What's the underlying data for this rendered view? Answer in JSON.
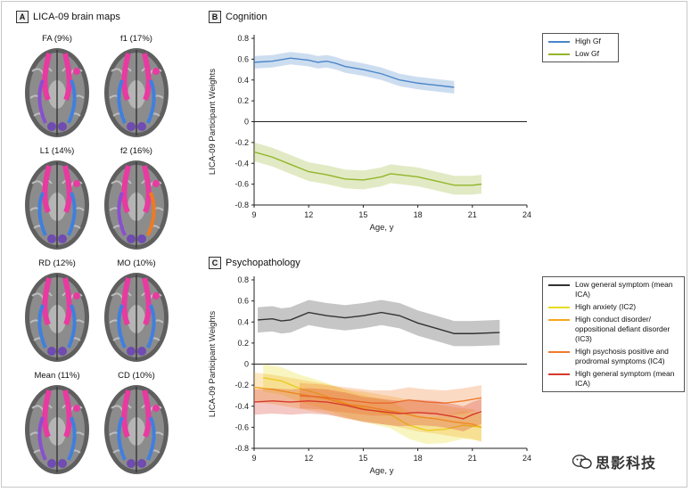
{
  "panels": {
    "a": {
      "badge": "A",
      "title": "LICA-09 brain maps",
      "maps": [
        {
          "label": "FA (9%)"
        },
        {
          "label": "f1 (17%)"
        },
        {
          "label": "L1 (14%)"
        },
        {
          "label": "f2 (16%)"
        },
        {
          "label": "RD (12%)"
        },
        {
          "label": "MO (10%)"
        },
        {
          "label": "Mean (11%)"
        },
        {
          "label": "CD (10%)"
        }
      ]
    },
    "b": {
      "badge": "B",
      "title": "Cognition"
    },
    "c": {
      "badge": "C",
      "title": "Psychopathology"
    }
  },
  "legend_b": [
    {
      "label": "High Gf",
      "color": "#4a86c8"
    },
    {
      "label": "Low Gf",
      "color": "#93b52a"
    }
  ],
  "legend_c": [
    {
      "label": "Low general symptom (mean ICA)",
      "color": "#333333"
    },
    {
      "label": "High anxiety (IC2)",
      "color": "#e6dc1e"
    },
    {
      "label": "High conduct disorder/ oppositional defiant disorder (IC3)",
      "color": "#f5a81c"
    },
    {
      "label": "High psychosis positive and prodromal symptoms (IC4)",
      "color": "#ef7a2c"
    },
    {
      "label": "High general symptom (mean ICA)",
      "color": "#d63a2c"
    }
  ],
  "watermark": {
    "text": "思影科技"
  },
  "chart_data": [
    {
      "type": "line",
      "title": "Cognition",
      "xlabel": "Age, y",
      "ylabel": "LICA-09 Participant Weights",
      "xlim": [
        9,
        24
      ],
      "ylim": [
        -0.8,
        0.8
      ],
      "xticks": [
        9,
        12,
        15,
        18,
        21,
        24
      ],
      "yticks": [
        -0.8,
        -0.6,
        -0.4,
        -0.2,
        0,
        0.2,
        0.4,
        0.6,
        0.8
      ],
      "series": [
        {
          "name": "High Gf",
          "color": "#4a86c8",
          "band": 0.06,
          "points": [
            [
              9,
              0.57
            ],
            [
              10,
              0.58
            ],
            [
              11,
              0.61
            ],
            [
              12,
              0.59
            ],
            [
              12.5,
              0.57
            ],
            [
              13,
              0.58
            ],
            [
              13.5,
              0.56
            ],
            [
              14,
              0.53
            ],
            [
              15,
              0.5
            ],
            [
              16,
              0.46
            ],
            [
              17,
              0.4
            ],
            [
              18,
              0.37
            ],
            [
              18.5,
              0.36
            ],
            [
              19,
              0.35
            ],
            [
              20,
              0.33
            ]
          ]
        },
        {
          "name": "Low Gf",
          "color": "#93b52a",
          "band": 0.09,
          "points": [
            [
              9,
              -0.29
            ],
            [
              10,
              -0.34
            ],
            [
              11,
              -0.41
            ],
            [
              12,
              -0.48
            ],
            [
              13,
              -0.51
            ],
            [
              14,
              -0.55
            ],
            [
              15,
              -0.56
            ],
            [
              16,
              -0.53
            ],
            [
              16.5,
              -0.5
            ],
            [
              17,
              -0.51
            ],
            [
              18,
              -0.53
            ],
            [
              19,
              -0.57
            ],
            [
              20,
              -0.61
            ],
            [
              21,
              -0.61
            ],
            [
              21.5,
              -0.6
            ]
          ]
        }
      ]
    },
    {
      "type": "line",
      "title": "Psychopathology",
      "xlabel": "Age, y",
      "ylabel": "LICA-09 Participant Weights",
      "xlim": [
        9,
        24
      ],
      "ylim": [
        -0.8,
        0.8
      ],
      "xticks": [
        9,
        12,
        15,
        18,
        21,
        24
      ],
      "yticks": [
        -0.8,
        -0.6,
        -0.4,
        -0.2,
        0,
        0.2,
        0.4,
        0.6,
        0.8
      ],
      "series": [
        {
          "name": "Low general symptom (mean ICA)",
          "color": "#333333",
          "band": 0.12,
          "points": [
            [
              9.2,
              0.42
            ],
            [
              10,
              0.43
            ],
            [
              10.5,
              0.41
            ],
            [
              11,
              0.42
            ],
            [
              12,
              0.49
            ],
            [
              13,
              0.46
            ],
            [
              14,
              0.44
            ],
            [
              15,
              0.46
            ],
            [
              16,
              0.49
            ],
            [
              17,
              0.46
            ],
            [
              18,
              0.39
            ],
            [
              19,
              0.34
            ],
            [
              20,
              0.29
            ],
            [
              21,
              0.29
            ],
            [
              22.5,
              0.3
            ]
          ]
        },
        {
          "name": "High anxiety (IC2)",
          "color": "#e6dc1e",
          "band": 0.13,
          "points": [
            [
              9.5,
              -0.13
            ],
            [
              10.5,
              -0.16
            ],
            [
              11.5,
              -0.23
            ],
            [
              12.5,
              -0.28
            ],
            [
              13.5,
              -0.34
            ],
            [
              14.5,
              -0.4
            ],
            [
              15.5,
              -0.44
            ],
            [
              16.5,
              -0.48
            ],
            [
              17.5,
              -0.58
            ],
            [
              18.5,
              -0.63
            ],
            [
              19.5,
              -0.62
            ],
            [
              20.5,
              -0.58
            ],
            [
              21.5,
              -0.6
            ]
          ]
        },
        {
          "name": "High conduct disorder/ oppositional defiant disorder (IC3)",
          "color": "#f5a81c",
          "band": 0.14,
          "points": [
            [
              9,
              -0.22
            ],
            [
              10,
              -0.24
            ],
            [
              11,
              -0.27
            ],
            [
              12,
              -0.3
            ],
            [
              13,
              -0.33
            ],
            [
              14,
              -0.38
            ],
            [
              15,
              -0.4
            ],
            [
              16,
              -0.43
            ],
            [
              17,
              -0.46
            ],
            [
              18,
              -0.5
            ],
            [
              19,
              -0.52
            ],
            [
              20,
              -0.55
            ],
            [
              21,
              -0.57
            ],
            [
              21.5,
              -0.6
            ]
          ]
        },
        {
          "name": "High psychosis positive and prodromal symptoms (IC4)",
          "color": "#ef7a2c",
          "band": 0.12,
          "points": [
            [
              11.5,
              -0.3
            ],
            [
              12.5,
              -0.31
            ],
            [
              13.5,
              -0.33
            ],
            [
              14.5,
              -0.35
            ],
            [
              15.5,
              -0.37
            ],
            [
              16.5,
              -0.37
            ],
            [
              17.5,
              -0.34
            ],
            [
              18.5,
              -0.36
            ],
            [
              19.5,
              -0.37
            ],
            [
              20.5,
              -0.35
            ],
            [
              21.5,
              -0.32
            ]
          ]
        },
        {
          "name": "High general symptom (mean ICA)",
          "color": "#d63a2c",
          "band": 0.12,
          "points": [
            [
              9,
              -0.36
            ],
            [
              10,
              -0.35
            ],
            [
              11,
              -0.36
            ],
            [
              12,
              -0.35
            ],
            [
              13,
              -0.36
            ],
            [
              14,
              -0.39
            ],
            [
              15,
              -0.43
            ],
            [
              16,
              -0.45
            ],
            [
              17,
              -0.47
            ],
            [
              18,
              -0.46
            ],
            [
              19,
              -0.47
            ],
            [
              20,
              -0.5
            ],
            [
              20.5,
              -0.52
            ],
            [
              21,
              -0.48
            ],
            [
              21.5,
              -0.45
            ]
          ]
        }
      ]
    }
  ]
}
